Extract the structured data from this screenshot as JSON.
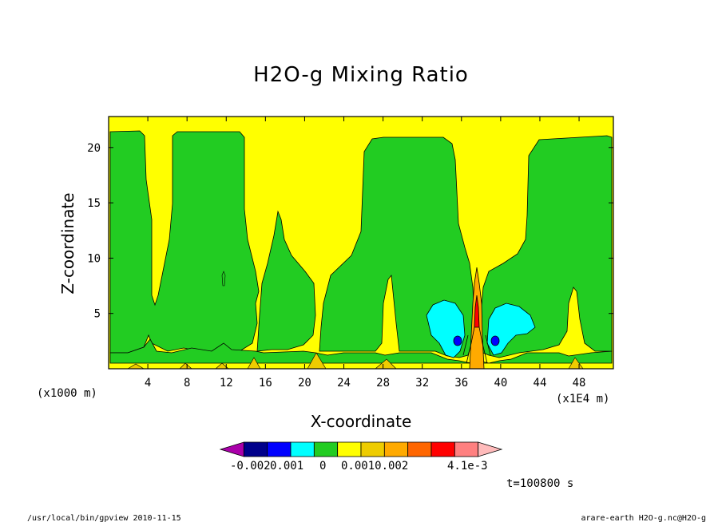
{
  "chart_data": {
    "type": "contour",
    "title": "H2O-g Mixing Ratio",
    "xlabel": "X-coordinate",
    "ylabel": "Z-coordinate",
    "x_unit_left": "(x1000 m)",
    "x_unit_right": "(x1E4 m)",
    "xlim": [
      0,
      51.5
    ],
    "ylim": [
      0,
      22.8
    ],
    "x_ticks": [
      4,
      8,
      12,
      16,
      20,
      24,
      28,
      32,
      36,
      40,
      44,
      48
    ],
    "y_ticks": [
      5,
      10,
      15,
      20
    ],
    "colorbar": {
      "colors": [
        "#aa00aa",
        "#00008b",
        "#0000ff",
        "#00ffff",
        "#22cc22",
        "#ffff00",
        "#eecc00",
        "#ffaa00",
        "#ff6600",
        "#ff0000",
        "#ff8080",
        "#ffbbbb"
      ],
      "labels": [
        "-0.002",
        "0.001",
        "0",
        "0.0010.002",
        "4.1e-3"
      ]
    },
    "time_label": "t=100800 s",
    "regions": {
      "background": "#ffff00",
      "green": "#22cc22",
      "cyan": "#00ffff",
      "blue": "#0000ff",
      "orange": "#ffaa00",
      "red": "#ff0000"
    }
  },
  "footer": {
    "left": "/usr/local/bin/gpview  2010-11-15",
    "right": "arare-earth_H2O-g.nc@H2O-g"
  }
}
